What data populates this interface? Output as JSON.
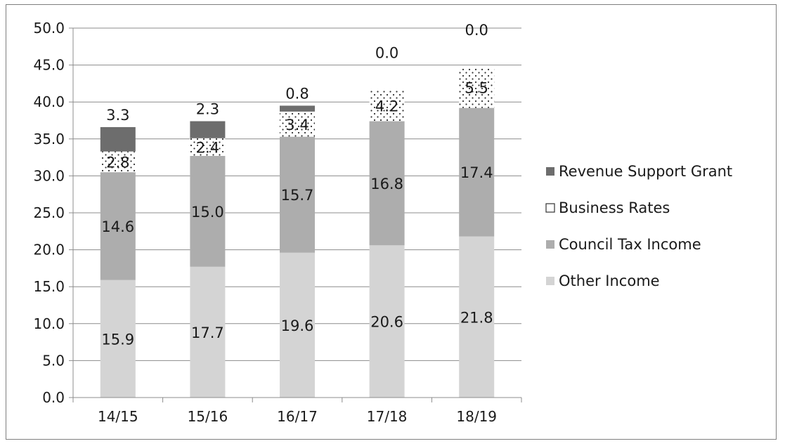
{
  "chart_data": {
    "type": "bar",
    "stacked": true,
    "categories": [
      "14/15",
      "15/16",
      "16/17",
      "17/18",
      "18/19"
    ],
    "series": [
      {
        "name": "Other Income",
        "values": [
          15.9,
          17.7,
          19.6,
          20.6,
          21.8
        ],
        "color": "#d4d4d4",
        "pattern": "solid"
      },
      {
        "name": "Council Tax Income",
        "values": [
          14.6,
          15.0,
          15.7,
          16.8,
          17.4
        ],
        "color": "#adadad",
        "pattern": "solid"
      },
      {
        "name": "Business Rates",
        "values": [
          2.8,
          2.4,
          3.4,
          4.2,
          5.5
        ],
        "color": "#ffffff",
        "pattern": "dotted"
      },
      {
        "name": "Revenue Support Grant",
        "values": [
          3.3,
          2.3,
          0.8,
          0.0,
          0.0
        ],
        "color": "#6d6d6d",
        "pattern": "solid"
      }
    ],
    "data_labels": {
      "Other Income": [
        "15.9",
        "17.7",
        "19.6",
        "20.6",
        "21.8"
      ],
      "Council Tax Income": [
        "14.6",
        "15.0",
        "15.7",
        "16.8",
        "17.4"
      ],
      "Business Rates": [
        "2.8",
        "2.4",
        "3.4",
        "4.2",
        "5.5"
      ],
      "Revenue Support Grant": [
        "3.3",
        "2.3",
        "0.8",
        "0.0",
        "0.0"
      ]
    },
    "y_tick_labels": [
      "0.0",
      "5.0",
      "10.0",
      "15.0",
      "20.0",
      "25.0",
      "30.0",
      "35.0",
      "40.0",
      "45.0",
      "50.0"
    ],
    "ylim": [
      0,
      50
    ],
    "ystep": 5,
    "title": "",
    "xlabel": "",
    "ylabel": "",
    "grid": "horizontal",
    "legend": {
      "position": "right",
      "order": [
        "Revenue Support Grant",
        "Business Rates",
        "Council Tax Income",
        "Other Income"
      ]
    }
  }
}
